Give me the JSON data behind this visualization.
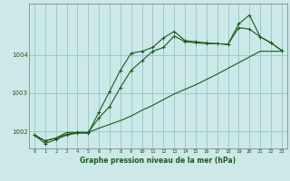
{
  "bg_color": "#cce8e8",
  "grid_color": "#99cccc",
  "line_color": "#1a5c1a",
  "red_grid_color": "#dd9999",
  "title": "Graphe pression niveau de la mer (hPa)",
  "xlim": [
    -0.5,
    23.5
  ],
  "ylim": [
    1001.55,
    1005.35
  ],
  "yticks": [
    1002,
    1003,
    1004
  ],
  "xticks": [
    0,
    1,
    2,
    3,
    4,
    5,
    6,
    7,
    8,
    9,
    10,
    11,
    12,
    13,
    14,
    15,
    16,
    17,
    18,
    19,
    20,
    21,
    22,
    23
  ],
  "series1_x": [
    0,
    1,
    2,
    3,
    4,
    5,
    6,
    7,
    8,
    9,
    10,
    11,
    12,
    13,
    14,
    15,
    16,
    17,
    18,
    19,
    20,
    21,
    22,
    23
  ],
  "series1_y": [
    1001.9,
    1001.75,
    1001.82,
    1001.92,
    1001.97,
    1001.97,
    1002.35,
    1002.65,
    1003.15,
    1003.6,
    1003.85,
    1004.1,
    1004.2,
    1004.5,
    1004.35,
    1004.32,
    1004.3,
    1004.3,
    1004.28,
    1004.72,
    1004.68,
    1004.48,
    1004.32,
    1004.12
  ],
  "series2_x": [
    0,
    1,
    2,
    3,
    4,
    5,
    6,
    7,
    8,
    9,
    10,
    11,
    12,
    13,
    14,
    15,
    16,
    17,
    18,
    19,
    20,
    21,
    22,
    23
  ],
  "series2_y": [
    1001.9,
    1001.68,
    1001.78,
    1001.9,
    1001.95,
    1001.95,
    1002.5,
    1003.05,
    1003.6,
    1004.05,
    1004.1,
    1004.2,
    1004.45,
    1004.62,
    1004.38,
    1004.35,
    1004.32,
    1004.3,
    1004.28,
    1004.82,
    1005.05,
    1004.48,
    1004.32,
    1004.12
  ],
  "series3_x": [
    0,
    1,
    2,
    3,
    4,
    5,
    6,
    7,
    8,
    9,
    10,
    11,
    12,
    13,
    14,
    15,
    16,
    17,
    18,
    19,
    20,
    21,
    22,
    23
  ],
  "series3_y": [
    1001.9,
    1001.75,
    1001.82,
    1001.97,
    1001.97,
    1001.97,
    1002.08,
    1002.18,
    1002.28,
    1002.4,
    1002.55,
    1002.68,
    1002.83,
    1002.98,
    1003.1,
    1003.22,
    1003.36,
    1003.5,
    1003.65,
    1003.8,
    1003.95,
    1004.1,
    1004.1,
    1004.1
  ]
}
